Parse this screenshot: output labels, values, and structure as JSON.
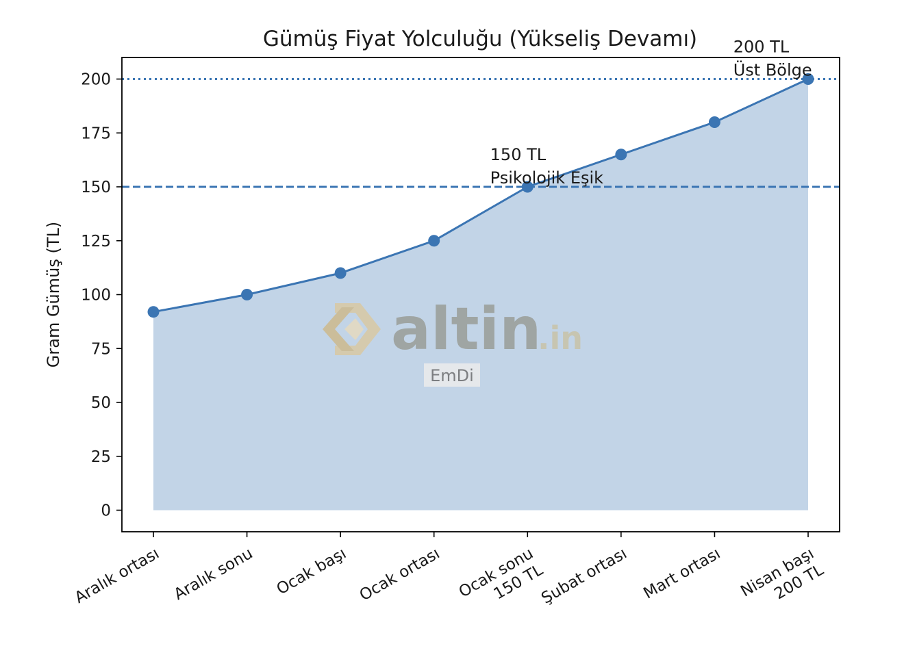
{
  "chart_data": {
    "type": "area",
    "title": "Gümüş Fiyat Yolculuğu (Yükseliş Devamı)",
    "xlabel": "",
    "ylabel": "Gram Gümüş (TL)",
    "categories": [
      [
        "Aralık ortası"
      ],
      [
        "Aralık sonu"
      ],
      [
        "Ocak başı"
      ],
      [
        "Ocak ortası"
      ],
      [
        "Ocak sonu",
        "150 TL"
      ],
      [
        "Şubat ortası"
      ],
      [
        "Mart ortası"
      ],
      [
        "Nisan başı",
        "200 TL"
      ]
    ],
    "series": [
      {
        "values": [
          92,
          100,
          110,
          125,
          150,
          165,
          180,
          200
        ],
        "color": "#3b75b3",
        "fill": "#c2d4e7"
      }
    ],
    "ylim": [
      -10,
      210
    ],
    "yticks": [
      0,
      25,
      50,
      75,
      100,
      125,
      150,
      175,
      200
    ],
    "grid": false,
    "reference_lines": [
      {
        "y": 150,
        "style": "dashed",
        "color": "#3b75b3"
      },
      {
        "y": 200,
        "style": "dotted",
        "color": "#3b75b3"
      }
    ],
    "annotations": [
      {
        "lines": [
          "150 TL",
          "Psikolojik Eşik"
        ],
        "x_index": 3.6,
        "y": 150
      },
      {
        "lines": [
          "200 TL",
          "Üst Bölge"
        ],
        "x_index": 6.2,
        "y": 200
      }
    ]
  },
  "watermark": {
    "brand": "altin",
    "suffix": ".in",
    "tag": "EmDi",
    "brand_color": "#9a9d98",
    "logo_color": "#d9c9a3"
  }
}
